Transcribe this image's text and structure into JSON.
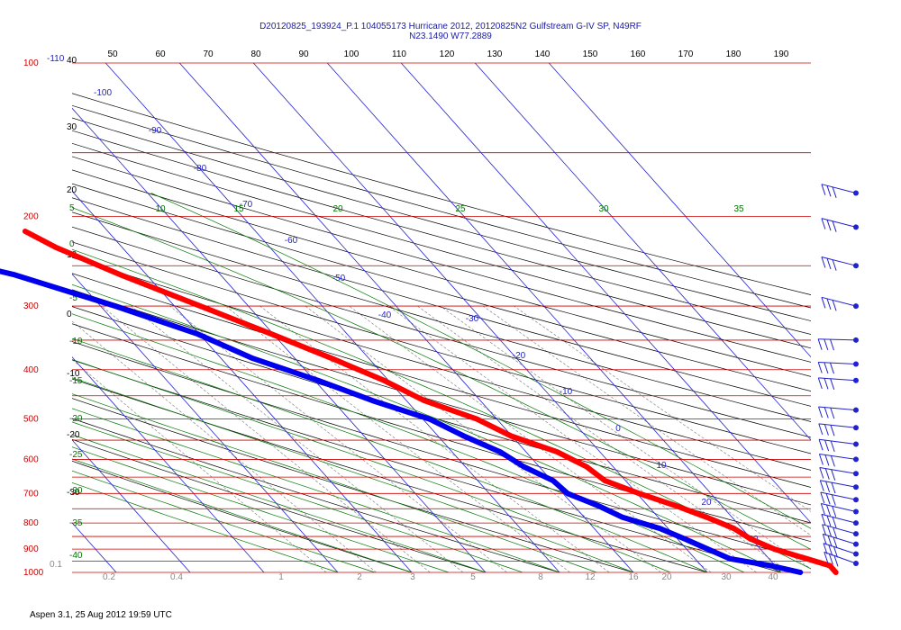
{
  "chart_data": {
    "type": "skew-t",
    "title": "D20120825_193924_P.1 104055173 Hurricane 2012, 20120825N2 Gulfstream G-IV SP, N49RF",
    "subtitle": "N23.1490 W77.2889",
    "footer": "Aspen 3.1, 25 Aug 2012  19:59 UTC",
    "pressure_axis": {
      "labels": [
        "100",
        "200",
        "300",
        "400",
        "500",
        "600",
        "700",
        "800",
        "900",
        "1000"
      ],
      "range": [
        100,
        1000
      ]
    },
    "top_axis_labels": [
      "50",
      "60",
      "70",
      "80",
      "90",
      "100",
      "110",
      "120",
      "130",
      "140",
      "150",
      "160",
      "170",
      "180",
      "190"
    ],
    "left_isotherm_labels": [
      "-110",
      "40",
      "30",
      "20",
      "10",
      "0",
      "-10",
      "-20",
      "-30"
    ],
    "left_theta_labels": [
      "5",
      "0",
      "-5",
      "-10",
      "-15",
      "-20",
      "-25",
      "-30",
      "-35",
      "-40"
    ],
    "theta_top_labels": [
      "10",
      "15",
      "20",
      "25",
      "30",
      "35"
    ],
    "isotherm_labels": [
      "-100",
      "-90",
      "-80",
      "-70",
      "-60",
      "-50",
      "-40",
      "-30",
      "-20",
      "-10",
      "0",
      "10",
      "20",
      "30"
    ],
    "mixing_ratio_labels": [
      "0.1",
      "0.2",
      "0.4",
      "1",
      "2",
      "3",
      "5",
      "8",
      "12",
      "16",
      "20",
      "30",
      "40"
    ],
    "colors": {
      "temperature": "#ff0000",
      "dewpoint": "#0000ee",
      "pressure_lines": "#cc0000",
      "isotherms": "#2222cc",
      "dry_adiabats": "#000000",
      "moist_adiabats": "#007700",
      "mixing_ratio": "#888888"
    },
    "series": [
      {
        "name": "",
        "role": "temperature",
        "points": [
          [
            214,
            -41.2
          ],
          [
            230,
            -39.0
          ],
          [
            260,
            -33.6
          ],
          [
            300,
            -26.5
          ],
          [
            340,
            -20.3
          ],
          [
            380,
            -15.0
          ],
          [
            420,
            -10.6
          ],
          [
            460,
            -7.6
          ],
          [
            500,
            -2.7
          ],
          [
            540,
            -0.1
          ],
          [
            580,
            4.2
          ],
          [
            620,
            6.4
          ],
          [
            660,
            7.2
          ],
          [
            700,
            10.3
          ],
          [
            740,
            13.8
          ],
          [
            780,
            16.6
          ],
          [
            820,
            18.9
          ],
          [
            860,
            19.9
          ],
          [
            900,
            21.9
          ],
          [
            940,
            25.1
          ],
          [
            970,
            27.4
          ],
          [
            1000,
            27.4
          ]
        ]
      },
      {
        "name": "",
        "role": "dewpoint",
        "points": [
          [
            214,
            -60.0
          ],
          [
            232,
            -59.4
          ],
          [
            260,
            -48.0
          ],
          [
            300,
            -38.0
          ],
          [
            340,
            -30.3
          ],
          [
            380,
            -25.7
          ],
          [
            420,
            -19.5
          ],
          [
            460,
            -14.6
          ],
          [
            500,
            -9.1
          ],
          [
            540,
            -6.5
          ],
          [
            580,
            -3.5
          ],
          [
            620,
            -2.1
          ],
          [
            660,
            0.2
          ],
          [
            700,
            0.6
          ],
          [
            740,
            3.3
          ],
          [
            780,
            5.2
          ],
          [
            820,
            8.9
          ],
          [
            860,
            11.0
          ],
          [
            900,
            12.9
          ],
          [
            940,
            14.7
          ],
          [
            970,
            19.4
          ],
          [
            1000,
            22.6
          ]
        ]
      },
      {
        "name": "",
        "role": "temperature-isolated-point",
        "points": [
          [
            180,
            -41.6
          ]
        ]
      }
    ],
    "wind_barbs_pressure": [
      180,
      210,
      250,
      300,
      350,
      390,
      420,
      480,
      520,
      560,
      600,
      640,
      680,
      720,
      760,
      800,
      840,
      880,
      920,
      960
    ]
  }
}
